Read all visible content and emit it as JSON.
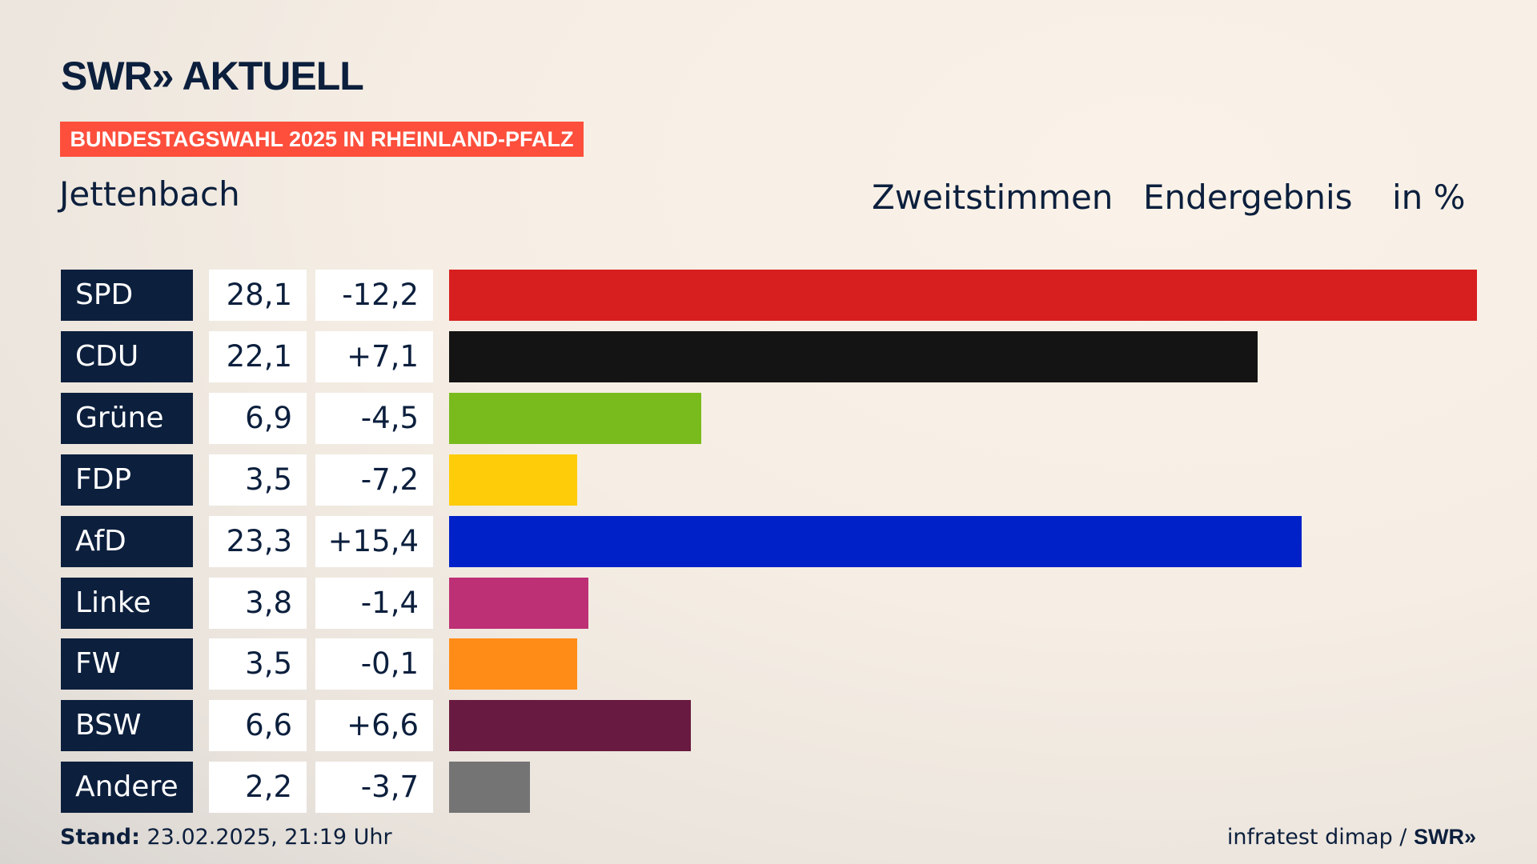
{
  "logo_text": "SWR» AKTUELL",
  "banner": "BUNDESTAGSWAHL 2025 IN RHEINLAND-PFALZ",
  "place": "Jettenbach",
  "header": {
    "vote_type": "Zweitstimmen",
    "status": "Endergebnis",
    "unit": "in %"
  },
  "chart_data": {
    "type": "bar",
    "title": "Jettenbach – Zweitstimmen Endergebnis in %",
    "categories": [
      "SPD",
      "CDU",
      "Grüne",
      "FDP",
      "AfD",
      "Linke",
      "FW",
      "BSW",
      "Andere"
    ],
    "values": [
      28.1,
      22.1,
      6.9,
      3.5,
      23.3,
      3.8,
      3.5,
      6.6,
      2.2
    ],
    "value_labels": [
      "28,1",
      "22,1",
      "6,9",
      "3,5",
      "23,3",
      "3,8",
      "3,5",
      "6,6",
      "2,2"
    ],
    "diff_labels": [
      "-12,2",
      "+7,1",
      "-4,5",
      "-7,2",
      "+15,4",
      "-1,4",
      "-0,1",
      "+6,6",
      "-3,7"
    ],
    "diffs": [
      -12.2,
      7.1,
      -4.5,
      -7.2,
      15.4,
      -1.4,
      -0.1,
      6.6,
      -3.7
    ],
    "colors": [
      "#d71f1f",
      "#141414",
      "#79bb1d",
      "#ffcc0a",
      "#0021c8",
      "#bd3075",
      "#ff8c17",
      "#691a40",
      "#747474"
    ],
    "xlim": [
      0,
      28.1
    ]
  },
  "footer": {
    "stand_label": "Stand:",
    "stand_value": " 23.02.2025, 21:19 Uhr",
    "source": "infratest dimap / ",
    "source_brand": "SWR»"
  }
}
